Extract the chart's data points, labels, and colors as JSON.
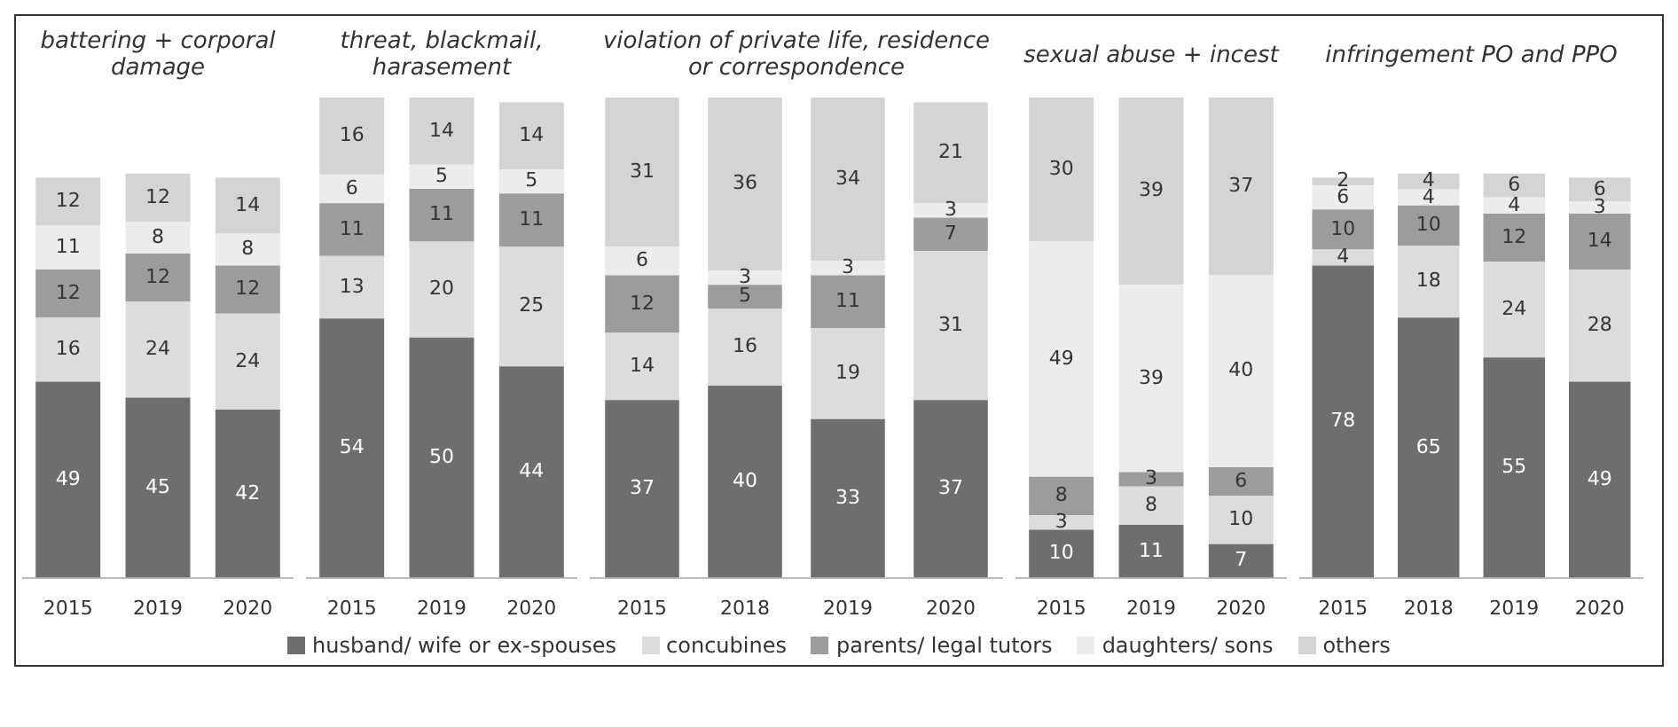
{
  "chart_data": [
    {
      "type": "bar",
      "stacked": true,
      "title": "battering + corporal damage",
      "categories": [
        "2015",
        "2019",
        "2020"
      ],
      "data_labels": true,
      "legend": "bottom",
      "tick_labels": "x",
      "series": [
        {
          "name": "husband/ wife or ex-spouses",
          "color": "#6e6e6e",
          "values": [
            49,
            45,
            42
          ]
        },
        {
          "name": "concubines",
          "color": "#dcdcdc",
          "values": [
            16,
            24,
            24
          ]
        },
        {
          "name": "parents/ legal tutors",
          "color": "#9c9c9c",
          "values": [
            12,
            12,
            12
          ]
        },
        {
          "name": "daughters/ sons",
          "color": "#ececec",
          "values": [
            11,
            8,
            8
          ]
        },
        {
          "name": "others",
          "color": "#d4d4d4",
          "values": [
            12,
            12,
            14
          ]
        }
      ]
    },
    {
      "type": "bar",
      "stacked": true,
      "title": "threat, blackmail, harasement",
      "categories": [
        "2015",
        "2019",
        "2020"
      ],
      "data_labels": true,
      "tick_labels": "x",
      "series": [
        {
          "color": "#6e6e6e",
          "values": [
            54,
            50,
            44
          ]
        },
        {
          "color": "#dcdcdc",
          "values": [
            13,
            20,
            25
          ]
        },
        {
          "color": "#9c9c9c",
          "values": [
            11,
            11,
            11
          ]
        },
        {
          "color": "#ececec",
          "values": [
            6,
            5,
            5
          ]
        },
        {
          "color": "#d4d4d4",
          "values": [
            16,
            14,
            14
          ]
        }
      ]
    },
    {
      "type": "bar",
      "stacked": true,
      "title": "violation of private life, residence or correspondence",
      "categories": [
        "2015",
        "2018",
        "2019",
        "2020"
      ],
      "data_labels": true,
      "tick_labels": "x",
      "series": [
        {
          "color": "#6e6e6e",
          "values": [
            37,
            40,
            33,
            37
          ]
        },
        {
          "color": "#dcdcdc",
          "values": [
            14,
            16,
            19,
            31
          ]
        },
        {
          "color": "#9c9c9c",
          "values": [
            12,
            5,
            11,
            7
          ]
        },
        {
          "color": "#ececec",
          "values": [
            6,
            3,
            3,
            3
          ]
        },
        {
          "color": "#d4d4d4",
          "values": [
            31,
            36,
            34,
            21
          ]
        }
      ]
    },
    {
      "type": "bar",
      "stacked": true,
      "title": "sexual abuse + incest",
      "categories": [
        "2015",
        "2019",
        "2020"
      ],
      "data_labels": true,
      "tick_labels": "x",
      "series": [
        {
          "color": "#6e6e6e",
          "values": [
            10,
            11,
            7
          ]
        },
        {
          "color": "#dcdcdc",
          "values": [
            3,
            8,
            10
          ]
        },
        {
          "color": "#9c9c9c",
          "values": [
            8,
            3,
            6
          ]
        },
        {
          "color": "#ececec",
          "values": [
            49,
            39,
            40
          ]
        },
        {
          "color": "#d4d4d4",
          "values": [
            30,
            39,
            37
          ]
        }
      ]
    },
    {
      "type": "bar",
      "stacked": true,
      "title": "infringement PO and PPO",
      "categories": [
        "2015",
        "2018",
        "2019",
        "2020"
      ],
      "data_labels": true,
      "tick_labels": "x",
      "series": [
        {
          "color": "#6e6e6e",
          "values": [
            78,
            65,
            55,
            49
          ]
        },
        {
          "color": "#dcdcdc",
          "values": [
            4,
            18,
            24,
            28
          ]
        },
        {
          "color": "#9c9c9c",
          "values": [
            10,
            10,
            12,
            14
          ]
        },
        {
          "color": "#ececec",
          "values": [
            6,
            4,
            4,
            3
          ]
        },
        {
          "color": "#d4d4d4",
          "values": [
            2,
            4,
            6,
            6
          ]
        }
      ]
    }
  ]
}
